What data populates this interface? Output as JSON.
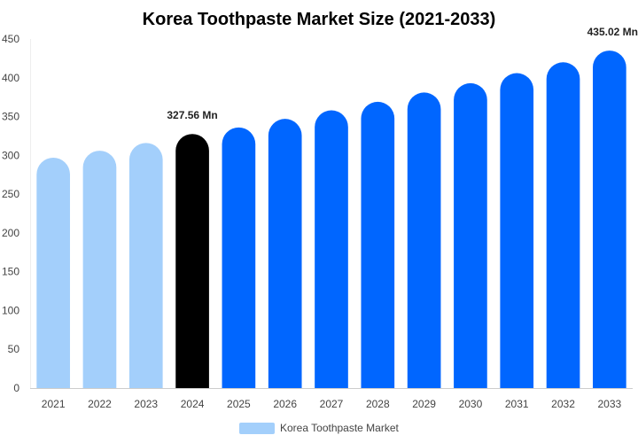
{
  "chart_data": {
    "type": "bar",
    "title": "Korea Toothpaste Market Size (2021-2033)",
    "categories": [
      "2021",
      "2022",
      "2023",
      "2024",
      "2025",
      "2026",
      "2027",
      "2028",
      "2029",
      "2030",
      "2031",
      "2032",
      "2033"
    ],
    "series": [
      {
        "name": "Korea Toothpaste Market",
        "values": [
          297,
          306,
          316,
          327.56,
          336,
          347,
          358,
          369,
          381,
          393,
          406,
          420,
          435.02
        ]
      }
    ],
    "ylim": [
      0,
      450
    ],
    "yticks": [
      0,
      50,
      100,
      150,
      200,
      250,
      300,
      350,
      400,
      450
    ],
    "data_labels": [
      {
        "category": "2024",
        "text": "327.56 Mn"
      },
      {
        "category": "2033",
        "text": "435.02 Mn"
      }
    ],
    "grid": false,
    "legend": "bottom",
    "colors": {
      "historical": "#a3cffb",
      "current": "#000000",
      "forecast": "#0066ff",
      "legend": "#a3cffb"
    },
    "bar_color_groups": [
      "historical",
      "historical",
      "historical",
      "current",
      "forecast",
      "forecast",
      "forecast",
      "forecast",
      "forecast",
      "forecast",
      "forecast",
      "forecast",
      "forecast"
    ]
  }
}
